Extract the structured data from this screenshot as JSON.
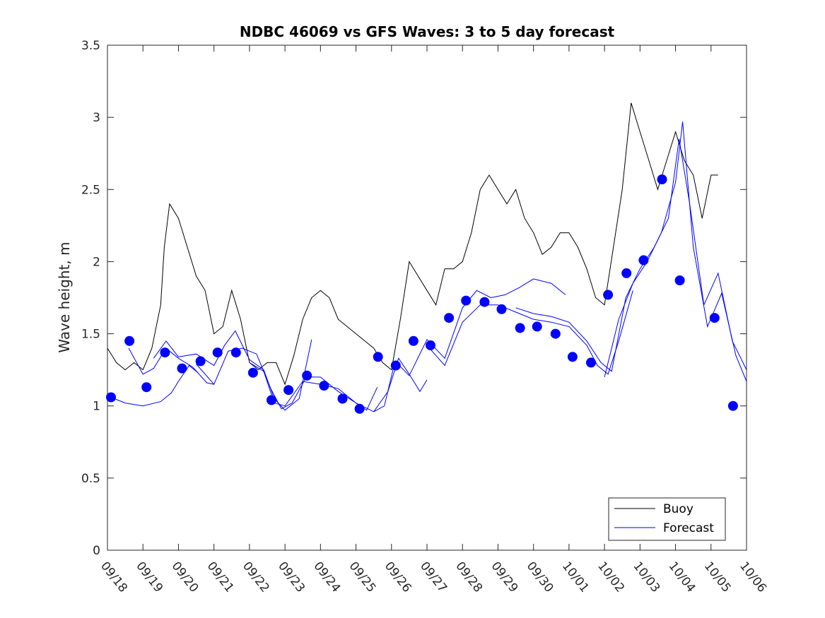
{
  "chart_data": {
    "type": "line",
    "title": "NDBC 46069 vs GFS Waves: 3 to 5 day forecast",
    "xlabel": "",
    "ylabel": "Wave height, m",
    "xlim": [
      0,
      18
    ],
    "ylim": [
      0,
      3.5
    ],
    "yticks": [
      0,
      0.5,
      1,
      1.5,
      2,
      2.5,
      3,
      3.5
    ],
    "ytick_labels": [
      "0",
      "0.5",
      "1",
      "1.5",
      "2",
      "2.5",
      "3",
      "3.5"
    ],
    "categories": [
      "09/18",
      "09/19",
      "09/20",
      "09/21",
      "09/22",
      "09/23",
      "09/24",
      "09/25",
      "09/26",
      "09/27",
      "09/28",
      "09/29",
      "09/30",
      "10/01",
      "10/02",
      "10/03",
      "10/04",
      "10/05",
      "10/06"
    ],
    "x_unit": "days since 09/18",
    "legend": {
      "position": "bottom-right",
      "entries": [
        "Buoy",
        "Forecast"
      ]
    },
    "colors": {
      "buoy": "#000000",
      "forecast": "#0000ff",
      "marker": "#0000ff",
      "axes": "#262626"
    },
    "series": [
      {
        "name": "Buoy",
        "x": [
          0,
          0.25,
          0.5,
          0.75,
          1,
          1.25,
          1.5,
          1.6,
          1.75,
          2.0,
          2.25,
          2.5,
          2.75,
          3.0,
          3.25,
          3.5,
          3.75,
          4.0,
          4.25,
          4.5,
          4.75,
          5.0,
          5.25,
          5.5,
          5.75,
          6.0,
          6.25,
          6.5,
          6.75,
          7.0,
          7.25,
          7.5,
          7.75,
          8.0,
          8.25,
          8.5,
          8.75,
          9.0,
          9.25,
          9.5,
          9.75,
          10.0,
          10.25,
          10.5,
          10.75,
          11.0,
          11.25,
          11.5,
          11.75,
          12.0,
          12.25,
          12.5,
          12.75,
          13.0,
          13.25,
          13.5,
          13.75,
          14.0,
          14.25,
          14.5,
          14.75,
          15.0,
          15.25,
          15.5,
          15.75,
          16.0,
          16.25,
          16.5,
          16.75,
          17.0,
          17.2
        ],
        "values": [
          1.4,
          1.3,
          1.25,
          1.3,
          1.25,
          1.4,
          1.7,
          2.1,
          2.4,
          2.3,
          2.1,
          1.9,
          1.8,
          1.5,
          1.55,
          1.8,
          1.6,
          1.3,
          1.25,
          1.3,
          1.3,
          1.15,
          1.35,
          1.6,
          1.75,
          1.8,
          1.75,
          1.6,
          1.55,
          1.5,
          1.45,
          1.4,
          1.3,
          1.25,
          1.6,
          2.0,
          1.9,
          1.8,
          1.7,
          1.95,
          1.95,
          2.0,
          2.2,
          2.5,
          2.6,
          2.5,
          2.4,
          2.5,
          2.3,
          2.2,
          2.05,
          2.1,
          2.2,
          2.2,
          2.1,
          1.95,
          1.75,
          1.7,
          2.1,
          2.5,
          3.1,
          2.9,
          2.7,
          2.5,
          2.7,
          2.9,
          2.7,
          2.6,
          2.3,
          2.6,
          2.6
        ]
      },
      {
        "name": "Forecast",
        "runs": [
          {
            "x": [
              0.1,
              0.5,
              1.0,
              1.5,
              1.8,
              2.0,
              2.3,
              2.55
            ],
            "values": [
              1.06,
              1.02,
              1.0,
              1.03,
              1.09,
              1.17,
              1.28,
              1.23
            ]
          },
          {
            "x": [
              0.6,
              1.0,
              1.3,
              1.65,
              2.0,
              2.4,
              2.8,
              3.0
            ],
            "values": [
              1.4,
              1.22,
              1.26,
              1.4,
              1.33,
              1.27,
              1.16,
              1.15
            ]
          },
          {
            "x": [
              1.3,
              1.65,
              2.0,
              2.5,
              3.0,
              3.3,
              3.6,
              4.0,
              4.4,
              4.7,
              5.0,
              5.4,
              5.75
            ],
            "values": [
              1.33,
              1.45,
              1.34,
              1.36,
              1.28,
              1.42,
              1.52,
              1.32,
              1.25,
              1.05,
              0.97,
              1.05,
              1.46
            ]
          },
          {
            "x": [
              2.5,
              3.0,
              3.4,
              3.8,
              4.2,
              4.6,
              4.9,
              5.2,
              5.6,
              6.0,
              6.5,
              7.0,
              7.3,
              7.6
            ],
            "values": [
              1.29,
              1.15,
              1.38,
              1.4,
              1.36,
              1.12,
              0.98,
              1.02,
              1.2,
              1.2,
              1.1,
              1.02,
              0.97,
              1.13
            ]
          },
          {
            "x": [
              4.0,
              4.4,
              4.7,
              5.0,
              5.5,
              6.0,
              6.5,
              7.0,
              7.5,
              7.9,
              8.2,
              8.5,
              8.8,
              9.0
            ],
            "values": [
              1.3,
              1.24,
              1.02,
              1.0,
              1.17,
              1.15,
              1.12,
              1.02,
              0.96,
              1.1,
              1.33,
              1.22,
              1.1,
              1.18
            ]
          },
          {
            "x": [
              7.5,
              7.8,
              8.1,
              8.5,
              9.0,
              9.5,
              10.0,
              10.4,
              10.8,
              11.2,
              11.6,
              12.0,
              12.5,
              12.9
            ],
            "values": [
              0.96,
              1.0,
              1.31,
              1.21,
              1.46,
              1.33,
              1.68,
              1.8,
              1.75,
              1.77,
              1.82,
              1.88,
              1.85,
              1.77
            ]
          },
          {
            "x": [
              9.0,
              9.5,
              10.0,
              10.5,
              11.0,
              11.5,
              12.0,
              12.5,
              13.0,
              13.5,
              13.8,
              14.1,
              14.4,
              14.8
            ],
            "values": [
              1.42,
              1.28,
              1.58,
              1.7,
              1.7,
              1.65,
              1.6,
              1.58,
              1.55,
              1.42,
              1.28,
              1.22,
              1.45,
              1.8
            ]
          },
          {
            "x": [
              11.5,
              12.0,
              12.5,
              13.0,
              13.5,
              13.9,
              14.2,
              14.6,
              15.0,
              15.4,
              15.8,
              16.1,
              16.4,
              16.8,
              17.2,
              17.6,
              18.0
            ],
            "values": [
              1.68,
              1.64,
              1.62,
              1.58,
              1.45,
              1.3,
              1.24,
              1.75,
              1.95,
              2.1,
              2.3,
              2.85,
              2.4,
              1.7,
              1.92,
              1.45,
              1.25
            ]
          },
          {
            "x": [
              14.0,
              14.4,
              14.8,
              15.2,
              15.6,
              16.0,
              16.2,
              16.5,
              16.9,
              17.3,
              17.7,
              18.0
            ],
            "values": [
              1.2,
              1.6,
              1.85,
              2.0,
              2.2,
              2.55,
              2.97,
              2.1,
              1.55,
              1.78,
              1.35,
              1.17
            ]
          }
        ],
        "markers": {
          "x": [
            0.1,
            0.62,
            1.1,
            1.62,
            2.1,
            2.62,
            3.1,
            3.62,
            4.1,
            4.62,
            5.1,
            5.62,
            6.1,
            6.62,
            7.1,
            7.62,
            8.12,
            8.62,
            9.1,
            9.62,
            10.1,
            10.62,
            11.1,
            11.62,
            12.1,
            12.62,
            13.1,
            13.62,
            14.1,
            14.62,
            15.1,
            15.62,
            16.12,
            17.1,
            17.62
          ],
          "values": [
            1.06,
            1.45,
            1.13,
            1.37,
            1.26,
            1.31,
            1.37,
            1.37,
            1.23,
            1.04,
            1.11,
            1.21,
            1.14,
            1.05,
            0.98,
            1.34,
            1.28,
            1.45,
            1.42,
            1.61,
            1.73,
            1.72,
            1.67,
            1.54,
            1.55,
            1.5,
            1.34,
            1.3,
            1.77,
            1.92,
            2.01,
            2.57,
            1.87,
            1.61,
            1.0
          ]
        }
      }
    ]
  }
}
